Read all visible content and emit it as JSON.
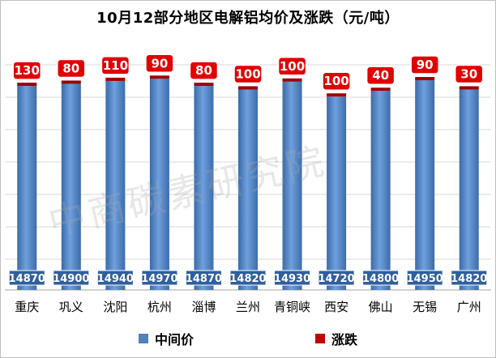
{
  "chart_data": {
    "type": "bar",
    "title": "10月12部分地区电解铝均价及涨跌（元/吨）",
    "categories": [
      "重庆",
      "巩义",
      "沈阳",
      "杭州",
      "淄博",
      "兰州",
      "青铜峡",
      "西安",
      "佛山",
      "无锡",
      "广州"
    ],
    "series": [
      {
        "name": "中间价",
        "values": [
          14870,
          14900,
          14940,
          14970,
          14870,
          14820,
          14930,
          14720,
          14800,
          14950,
          14820
        ],
        "color": "#4f81bd"
      },
      {
        "name": "涨跌",
        "values": [
          130,
          80,
          110,
          90,
          80,
          100,
          100,
          100,
          40,
          90,
          30
        ],
        "color": "#ff0000"
      }
    ],
    "grid": true,
    "legend_position": "bottom"
  },
  "watermark": "中商碳素研究院"
}
